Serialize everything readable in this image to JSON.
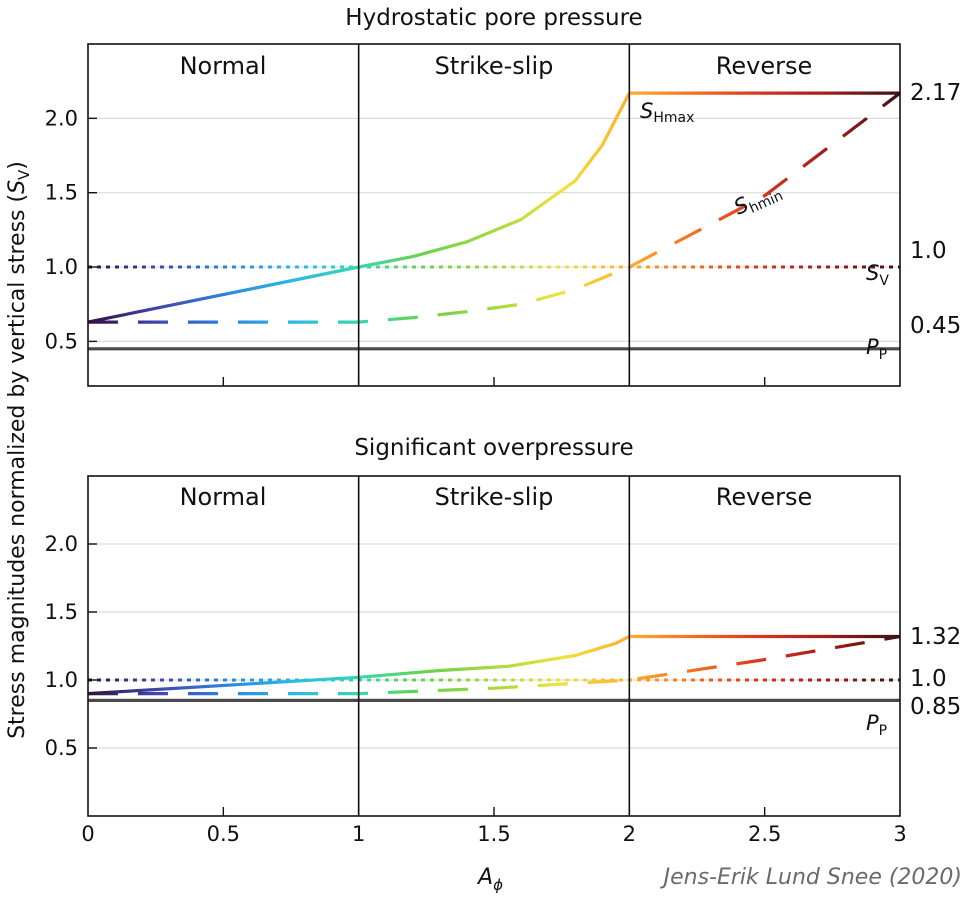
{
  "chart_data": [
    {
      "type": "line",
      "title": "Hydrostatic pore pressure",
      "regimes": [
        "Normal",
        "Strike-slip",
        "Reverse"
      ],
      "xlim": [
        0,
        3
      ],
      "ylim": [
        0.2,
        2.5
      ],
      "grid": true,
      "series": [
        {
          "name": "SHmax",
          "style": "solid",
          "x": [
            0,
            1,
            1.2,
            1.4,
            1.6,
            1.8,
            1.9,
            2,
            3
          ],
          "y": [
            0.63,
            1.0,
            1.07,
            1.17,
            1.32,
            1.58,
            1.82,
            2.17,
            2.17
          ]
        },
        {
          "name": "Shmin",
          "style": "dashed",
          "x": [
            0,
            1,
            1.2,
            1.4,
            1.6,
            1.8,
            2,
            2.5,
            3
          ],
          "y": [
            0.63,
            0.63,
            0.66,
            0.7,
            0.75,
            0.85,
            1.0,
            1.48,
            2.17
          ]
        },
        {
          "name": "SV",
          "style": "dotted",
          "x": [
            0,
            3
          ],
          "y": [
            1.0,
            1.0
          ]
        },
        {
          "name": "PP",
          "style": "gray",
          "x": [
            0,
            3
          ],
          "y": [
            0.45,
            0.45
          ]
        }
      ],
      "right_values": [
        "2.17",
        "1.0",
        "0.45"
      ]
    },
    {
      "type": "line",
      "title": "Significant overpressure",
      "regimes": [
        "Normal",
        "Strike-slip",
        "Reverse"
      ],
      "xlim": [
        0,
        3
      ],
      "ylim": [
        0.0,
        2.5
      ],
      "grid": true,
      "series": [
        {
          "name": "SHmax",
          "style": "solid",
          "x": [
            0,
            1,
            1.3,
            1.55,
            1.8,
            1.95,
            2,
            3
          ],
          "y": [
            0.9,
            1.02,
            1.07,
            1.1,
            1.18,
            1.27,
            1.32,
            1.32
          ]
        },
        {
          "name": "Shmin",
          "style": "dashed",
          "x": [
            0,
            1,
            1.5,
            2,
            2.5,
            3
          ],
          "y": [
            0.9,
            0.9,
            0.94,
            1.0,
            1.15,
            1.32
          ]
        },
        {
          "name": "SV",
          "style": "dotted",
          "x": [
            0,
            3
          ],
          "y": [
            1.0,
            1.0
          ]
        },
        {
          "name": "PP",
          "style": "gray",
          "x": [
            0,
            3
          ],
          "y": [
            0.85,
            0.85
          ]
        }
      ],
      "right_values": [
        "1.32",
        "1.0",
        "0.85"
      ]
    }
  ],
  "axes": {
    "ylabel_main": "Stress magnitudes normalized by vertical stress (",
    "ylabel_var": "S",
    "ylabel_sub": "V",
    "ylabel_close": ")",
    "xlabel_var": "A",
    "xlabel_sub": "ϕ",
    "yticks": [
      "0.5",
      "1.0",
      "1.5",
      "2.0"
    ],
    "xticks": [
      "0",
      "0.5",
      "1",
      "1.5",
      "2",
      "2.5",
      "3"
    ]
  },
  "labels": {
    "shmax": "S",
    "shmax_sub": "Hmax",
    "shmin": "S",
    "shmin_sub": "hmin",
    "sv": "S",
    "sv_sub": "V",
    "pp": "P",
    "pp_sub": "P"
  },
  "credit": "Jens-Erik Lund Snee (2020)",
  "colormap": [
    "#30123b",
    "#4145ab",
    "#2e81db",
    "#2ab9e6",
    "#35d7b2",
    "#6bd24a",
    "#a7d93f",
    "#eee43b",
    "#fdae2d",
    "#f56b1c",
    "#d6311e",
    "#9e1b1b",
    "#3a1212"
  ],
  "pp_color": "#4a4a4a"
}
